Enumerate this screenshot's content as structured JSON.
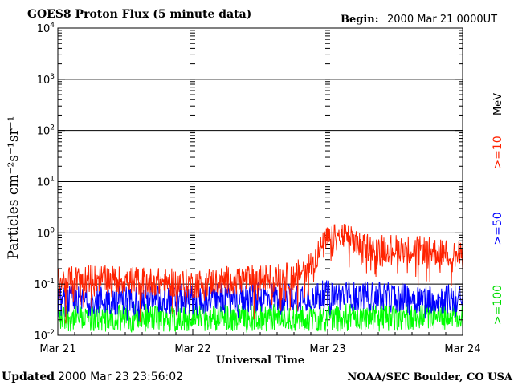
{
  "header": {
    "title": "GOES8 Proton Flux (5 minute data)",
    "begin_label": "Begin:",
    "begin_value": "2000 Mar 21 0000UT"
  },
  "footer": {
    "updated_label": "Updated",
    "updated_value": "2000 Mar 23 23:56:02",
    "source": "NOAA/SEC Boulder, CO USA"
  },
  "chart_data": {
    "type": "line",
    "title": "GOES8 Proton Flux (5 minute data)",
    "xlabel": "Universal Time",
    "ylabel": "Particles cm⁻²s⁻¹sr⁻¹",
    "yscale": "log",
    "ylim": [
      0.01,
      10000
    ],
    "ytick_labels": [
      {
        "base": "10",
        "exp": "-2"
      },
      {
        "base": "10",
        "exp": "-1"
      },
      {
        "base": "10",
        "exp": "0"
      },
      {
        "base": "10",
        "exp": "1"
      },
      {
        "base": "10",
        "exp": "2"
      },
      {
        "base": "10",
        "exp": "3"
      },
      {
        "base": "10",
        "exp": "4"
      }
    ],
    "xticks": [
      "Mar 21",
      "Mar 22",
      "Mar 23",
      "Mar 24"
    ],
    "xlim": [
      "2000-03-21 00:00",
      "2000-03-24 00:00"
    ],
    "grid": "horizontal at decades; dashed markers at day boundaries",
    "units_label": "MeV",
    "series": [
      {
        "name": ">=10",
        "color": "#ff2200",
        "x": [
          "Mar 21 00:00",
          "Mar 21 06:00",
          "Mar 21 12:00",
          "Mar 21 18:00",
          "Mar 22 00:00",
          "Mar 22 06:00",
          "Mar 22 12:00",
          "Mar 22 18:00",
          "Mar 22 21:00",
          "Mar 23 00:00",
          "Mar 23 03:00",
          "Mar 23 06:00",
          "Mar 23 12:00",
          "Mar 23 18:00",
          "Mar 24 00:00"
        ],
        "values": [
          0.11,
          0.13,
          0.12,
          0.11,
          0.1,
          0.12,
          0.13,
          0.14,
          0.25,
          0.75,
          0.85,
          0.55,
          0.5,
          0.45,
          0.35
        ]
      },
      {
        "name": ">=50",
        "color": "#0000ff",
        "x": [
          "Mar 21 00:00",
          "Mar 21 12:00",
          "Mar 22 00:00",
          "Mar 22 12:00",
          "Mar 23 00:00",
          "Mar 23 12:00",
          "Mar 24 00:00"
        ],
        "values": [
          0.045,
          0.05,
          0.05,
          0.055,
          0.06,
          0.055,
          0.05
        ]
      },
      {
        "name": ">=100",
        "color": "#00ff00",
        "x": [
          "Mar 21 00:00",
          "Mar 21 12:00",
          "Mar 22 00:00",
          "Mar 22 12:00",
          "Mar 23 00:00",
          "Mar 23 12:00",
          "Mar 24 00:00"
        ],
        "values": [
          0.022,
          0.022,
          0.022,
          0.022,
          0.022,
          0.022,
          0.022
        ]
      }
    ]
  }
}
